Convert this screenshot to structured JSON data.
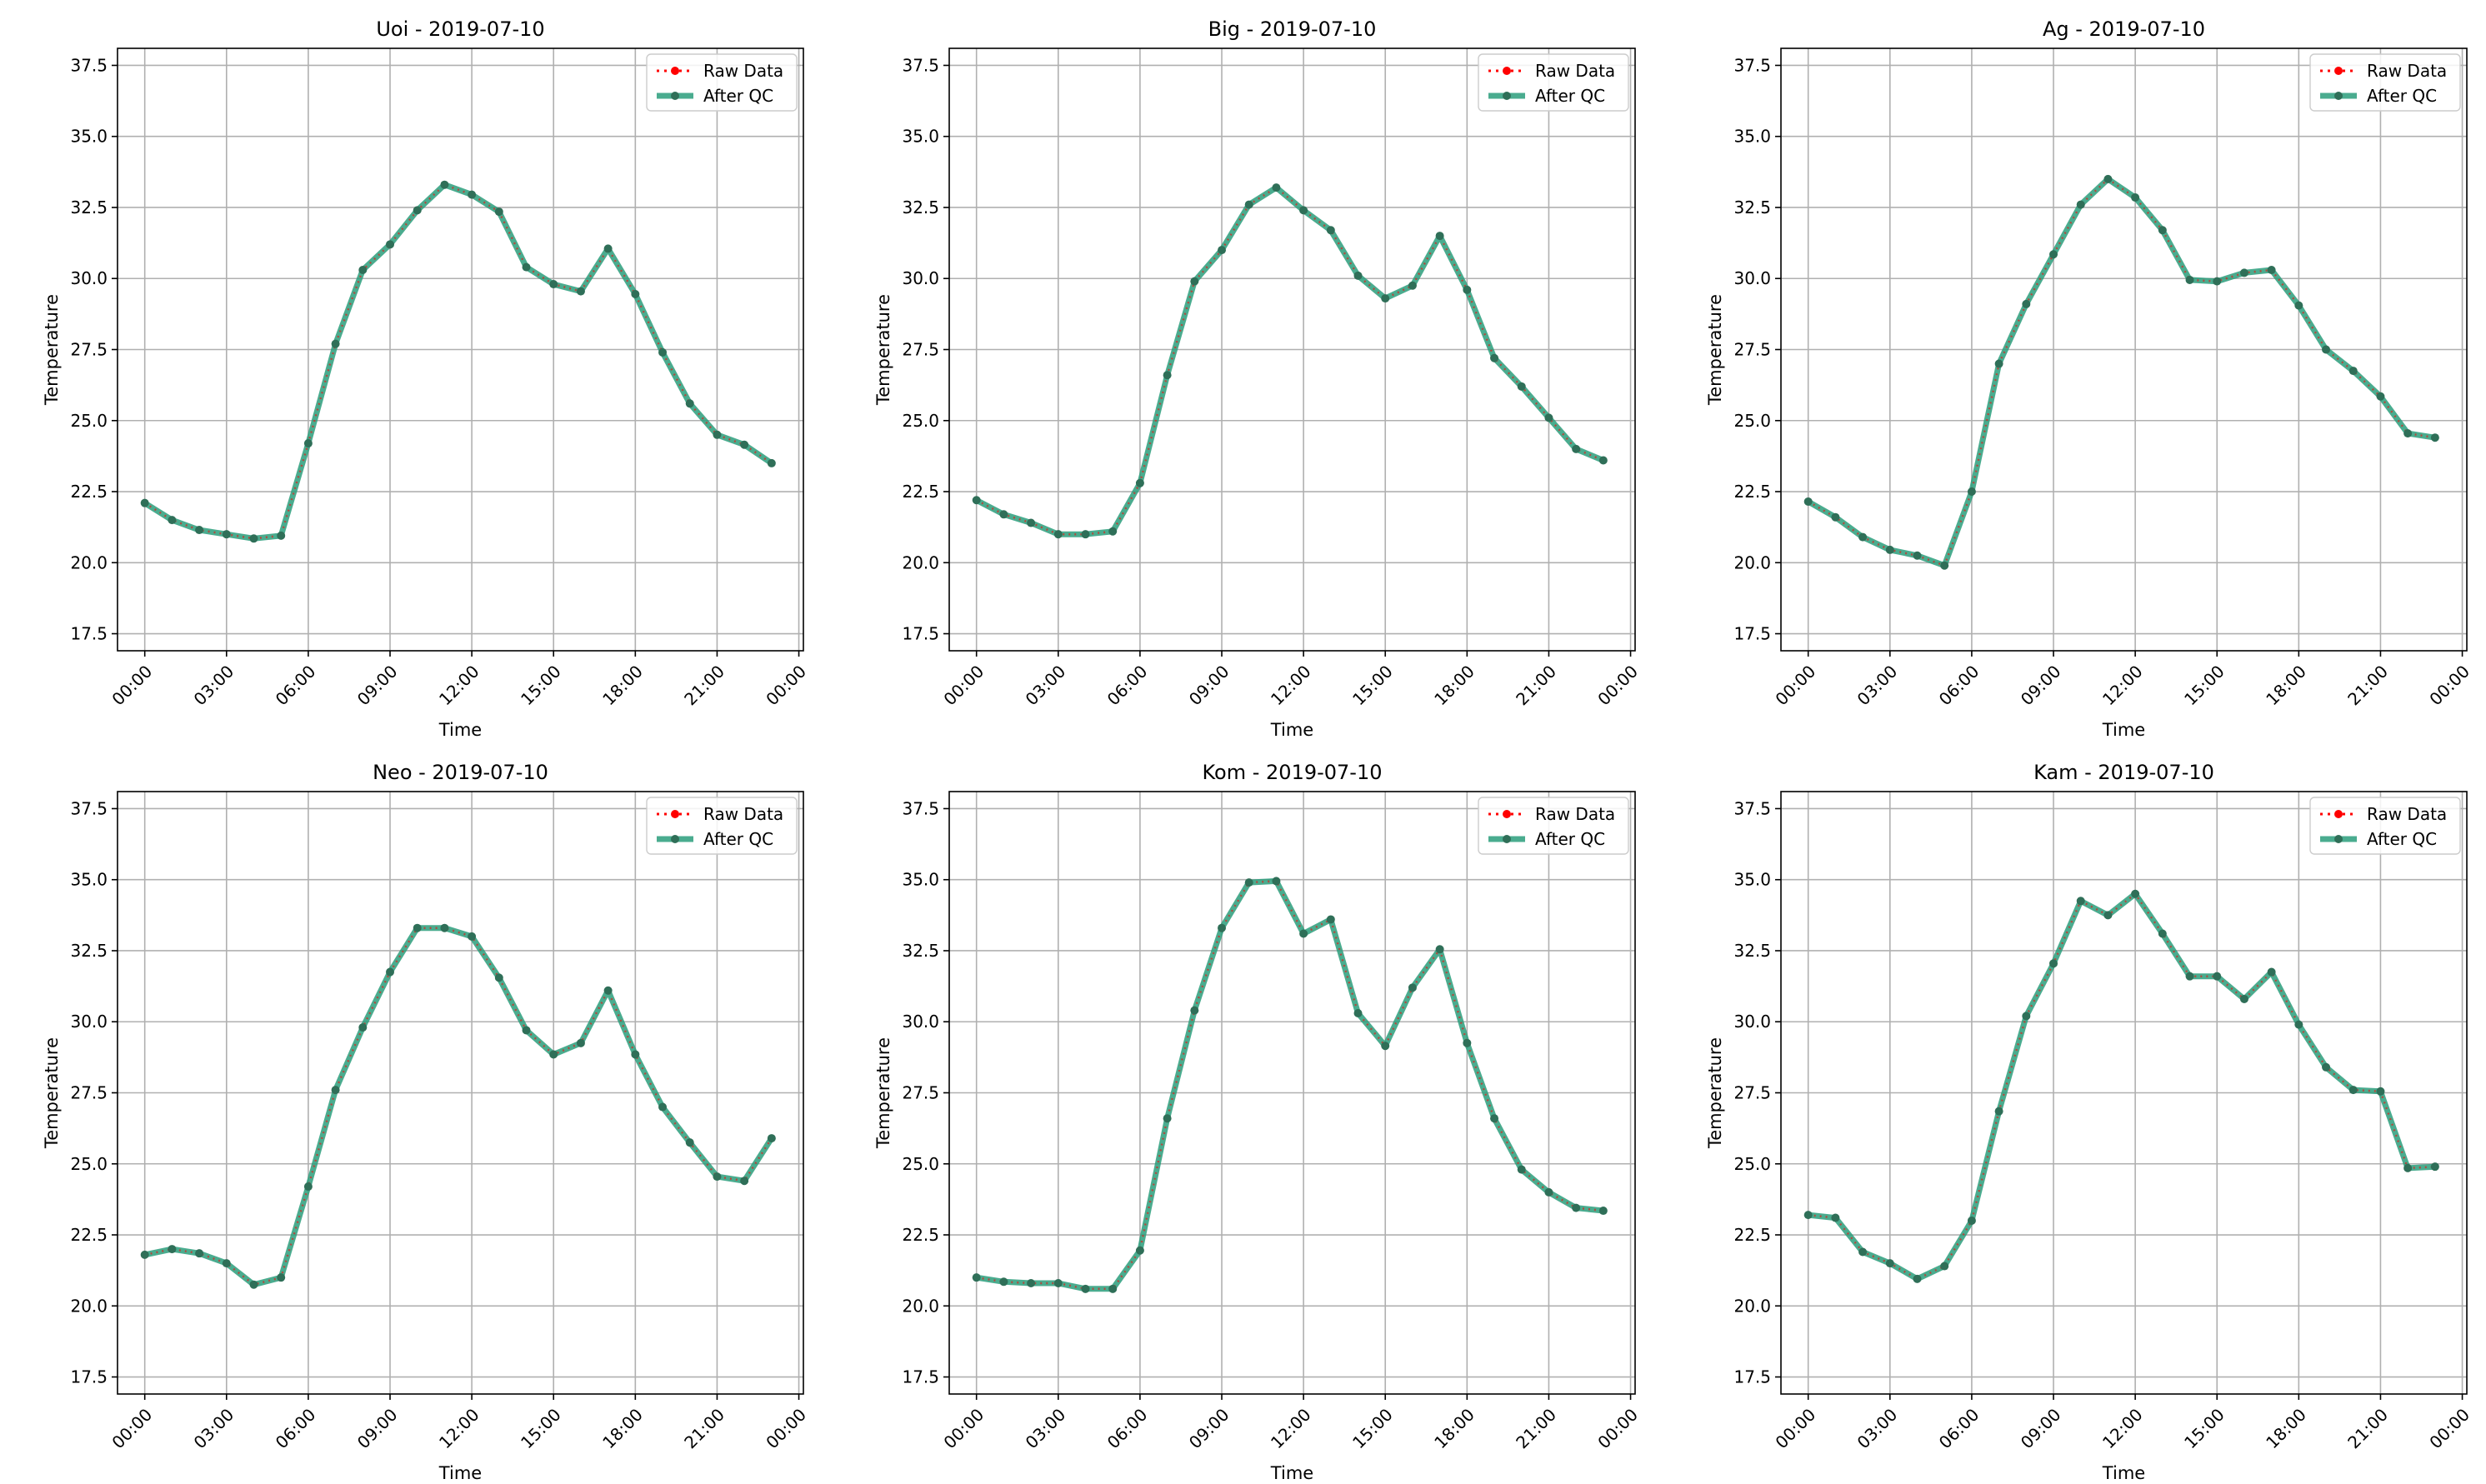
{
  "figure": {
    "legend_labels": {
      "raw": "Raw Data",
      "qc": "After QC"
    },
    "xlabel": "Time",
    "ylabel": "Temperature",
    "x_ticks": [
      "00:00",
      "03:00",
      "06:00",
      "09:00",
      "12:00",
      "15:00",
      "18:00",
      "21:00",
      "00:00"
    ],
    "y_ticks": [
      "17.5",
      "20.0",
      "22.5",
      "25.0",
      "27.5",
      "30.0",
      "32.5",
      "35.0",
      "37.5"
    ]
  },
  "colors": {
    "raw": "#ff0000",
    "qc": "#2a9d7b",
    "qc_marker": "#2f6f58",
    "grid": "#b0b0b0"
  },
  "chart_data": [
    {
      "type": "line",
      "title": "Uoi - 2019-07-10",
      "xlabel": "Time",
      "ylabel": "Temperature",
      "ylim": [
        16.9,
        38.1
      ],
      "xlim": [
        "2019-07-09 23:00",
        "2019-07-11 00:10"
      ],
      "x": [
        "00:00",
        "01:00",
        "02:00",
        "03:00",
        "04:00",
        "05:00",
        "06:00",
        "07:00",
        "08:00",
        "09:00",
        "10:00",
        "11:00",
        "12:00",
        "13:00",
        "14:00",
        "15:00",
        "16:00",
        "17:00",
        "18:00",
        "19:00",
        "20:00",
        "21:00",
        "22:00",
        "23:00"
      ],
      "grid": true,
      "legend": "top-right",
      "series": [
        {
          "name": "Raw Data",
          "values": [
            22.1,
            21.5,
            21.15,
            21.0,
            20.85,
            20.95,
            24.2,
            27.7,
            30.3,
            31.2,
            32.4,
            33.3,
            32.95,
            32.35,
            30.4,
            29.8,
            29.55,
            31.05,
            29.45,
            27.4,
            25.6,
            24.5,
            24.15,
            23.5
          ]
        },
        {
          "name": "After QC",
          "values": [
            22.1,
            21.5,
            21.15,
            21.0,
            20.85,
            20.95,
            24.2,
            27.7,
            30.3,
            31.2,
            32.4,
            33.3,
            32.95,
            32.35,
            30.4,
            29.8,
            29.55,
            31.05,
            29.45,
            27.4,
            25.6,
            24.5,
            24.15,
            23.5
          ]
        }
      ]
    },
    {
      "type": "line",
      "title": "Big - 2019-07-10",
      "xlabel": "Time",
      "ylabel": "Temperature",
      "ylim": [
        16.9,
        38.1
      ],
      "xlim": [
        "2019-07-09 23:00",
        "2019-07-11 00:10"
      ],
      "x": [
        "00:00",
        "01:00",
        "02:00",
        "03:00",
        "04:00",
        "05:00",
        "06:00",
        "07:00",
        "08:00",
        "09:00",
        "10:00",
        "11:00",
        "12:00",
        "13:00",
        "14:00",
        "15:00",
        "16:00",
        "17:00",
        "18:00",
        "19:00",
        "20:00",
        "21:00",
        "22:00",
        "23:00"
      ],
      "grid": true,
      "legend": "top-right",
      "series": [
        {
          "name": "Raw Data",
          "values": [
            22.2,
            21.7,
            21.4,
            21.0,
            21.0,
            21.1,
            22.8,
            26.6,
            29.9,
            31.0,
            32.6,
            33.2,
            32.4,
            31.7,
            30.1,
            29.3,
            29.75,
            31.5,
            29.6,
            27.2,
            26.2,
            25.1,
            24.0,
            23.6
          ]
        },
        {
          "name": "After QC",
          "values": [
            22.2,
            21.7,
            21.4,
            21.0,
            21.0,
            21.1,
            22.8,
            26.6,
            29.9,
            31.0,
            32.6,
            33.2,
            32.4,
            31.7,
            30.1,
            29.3,
            29.75,
            31.5,
            29.6,
            27.2,
            26.2,
            25.1,
            24.0,
            23.6
          ]
        }
      ]
    },
    {
      "type": "line",
      "title": "Ag - 2019-07-10",
      "xlabel": "Time",
      "ylabel": "Temperature",
      "ylim": [
        16.9,
        38.1
      ],
      "xlim": [
        "2019-07-09 23:00",
        "2019-07-11 00:10"
      ],
      "x": [
        "00:00",
        "01:00",
        "02:00",
        "03:00",
        "04:00",
        "05:00",
        "06:00",
        "07:00",
        "08:00",
        "09:00",
        "10:00",
        "11:00",
        "12:00",
        "13:00",
        "14:00",
        "15:00",
        "16:00",
        "17:00",
        "18:00",
        "19:00",
        "20:00",
        "21:00",
        "22:00",
        "23:00"
      ],
      "grid": true,
      "legend": "top-right",
      "series": [
        {
          "name": "Raw Data",
          "values": [
            22.15,
            21.6,
            20.9,
            20.45,
            20.25,
            19.9,
            22.5,
            27.0,
            29.1,
            30.85,
            32.6,
            33.5,
            32.85,
            31.7,
            29.95,
            29.9,
            30.2,
            30.3,
            29.05,
            27.5,
            26.75,
            25.85,
            24.55,
            24.4
          ]
        },
        {
          "name": "After QC",
          "values": [
            22.15,
            21.6,
            20.9,
            20.45,
            20.25,
            19.9,
            22.5,
            27.0,
            29.1,
            30.85,
            32.6,
            33.5,
            32.85,
            31.7,
            29.95,
            29.9,
            30.2,
            30.3,
            29.05,
            27.5,
            26.75,
            25.85,
            24.55,
            24.4
          ]
        }
      ]
    },
    {
      "type": "line",
      "title": "Neo - 2019-07-10",
      "xlabel": "Time",
      "ylabel": "Temperature",
      "ylim": [
        16.9,
        38.1
      ],
      "xlim": [
        "2019-07-09 23:00",
        "2019-07-11 00:10"
      ],
      "x": [
        "00:00",
        "01:00",
        "02:00",
        "03:00",
        "04:00",
        "05:00",
        "06:00",
        "07:00",
        "08:00",
        "09:00",
        "10:00",
        "11:00",
        "12:00",
        "13:00",
        "14:00",
        "15:00",
        "16:00",
        "17:00",
        "18:00",
        "19:00",
        "20:00",
        "21:00",
        "22:00",
        "23:00"
      ],
      "grid": true,
      "legend": "top-right",
      "series": [
        {
          "name": "Raw Data",
          "values": [
            21.8,
            22.0,
            21.85,
            21.5,
            20.75,
            21.0,
            24.2,
            27.6,
            29.8,
            31.75,
            33.3,
            33.3,
            33.0,
            31.55,
            29.7,
            28.85,
            29.25,
            31.1,
            28.85,
            27.0,
            25.75,
            24.55,
            24.4,
            25.9
          ]
        },
        {
          "name": "After QC",
          "values": [
            21.8,
            22.0,
            21.85,
            21.5,
            20.75,
            21.0,
            24.2,
            27.6,
            29.8,
            31.75,
            33.3,
            33.3,
            33.0,
            31.55,
            29.7,
            28.85,
            29.25,
            31.1,
            28.85,
            27.0,
            25.75,
            24.55,
            24.4,
            25.9
          ]
        }
      ]
    },
    {
      "type": "line",
      "title": "Kom - 2019-07-10",
      "xlabel": "Time",
      "ylabel": "Temperature",
      "ylim": [
        16.9,
        38.1
      ],
      "xlim": [
        "2019-07-09 23:00",
        "2019-07-11 00:10"
      ],
      "x": [
        "00:00",
        "01:00",
        "02:00",
        "03:00",
        "04:00",
        "05:00",
        "06:00",
        "07:00",
        "08:00",
        "09:00",
        "10:00",
        "11:00",
        "12:00",
        "13:00",
        "14:00",
        "15:00",
        "16:00",
        "17:00",
        "18:00",
        "19:00",
        "20:00",
        "21:00",
        "22:00",
        "23:00"
      ],
      "grid": true,
      "legend": "top-right",
      "series": [
        {
          "name": "Raw Data",
          "values": [
            21.0,
            20.85,
            20.8,
            20.8,
            20.6,
            20.6,
            21.95,
            26.6,
            30.4,
            33.3,
            34.9,
            34.95,
            33.1,
            33.6,
            30.3,
            29.15,
            31.2,
            32.55,
            29.25,
            26.6,
            24.8,
            24.0,
            23.45,
            23.35
          ]
        },
        {
          "name": "After QC",
          "values": [
            21.0,
            20.85,
            20.8,
            20.8,
            20.6,
            20.6,
            21.95,
            26.6,
            30.4,
            33.3,
            34.9,
            34.95,
            33.1,
            33.6,
            30.3,
            29.15,
            31.2,
            32.55,
            29.25,
            26.6,
            24.8,
            24.0,
            23.45,
            23.35
          ]
        }
      ]
    },
    {
      "type": "line",
      "title": "Kam - 2019-07-10",
      "xlabel": "Time",
      "ylabel": "Temperature",
      "ylim": [
        16.9,
        38.1
      ],
      "xlim": [
        "2019-07-09 23:00",
        "2019-07-11 00:10"
      ],
      "x": [
        "00:00",
        "01:00",
        "02:00",
        "03:00",
        "04:00",
        "05:00",
        "06:00",
        "07:00",
        "08:00",
        "09:00",
        "10:00",
        "11:00",
        "12:00",
        "13:00",
        "14:00",
        "15:00",
        "16:00",
        "17:00",
        "18:00",
        "19:00",
        "20:00",
        "21:00",
        "22:00",
        "23:00"
      ],
      "grid": true,
      "legend": "top-right",
      "series": [
        {
          "name": "Raw Data",
          "values": [
            23.2,
            23.1,
            21.9,
            21.5,
            20.95,
            21.4,
            23.0,
            26.85,
            30.2,
            32.05,
            34.25,
            33.75,
            34.5,
            33.1,
            31.6,
            31.6,
            30.8,
            31.75,
            29.9,
            28.4,
            27.6,
            27.55,
            24.85,
            24.9
          ]
        },
        {
          "name": "After QC",
          "values": [
            23.2,
            23.1,
            21.9,
            21.5,
            20.95,
            21.4,
            23.0,
            26.85,
            30.2,
            32.05,
            34.25,
            33.75,
            34.5,
            33.1,
            31.6,
            31.6,
            30.8,
            31.75,
            29.9,
            28.4,
            27.6,
            27.55,
            24.85,
            24.9
          ]
        }
      ]
    }
  ]
}
